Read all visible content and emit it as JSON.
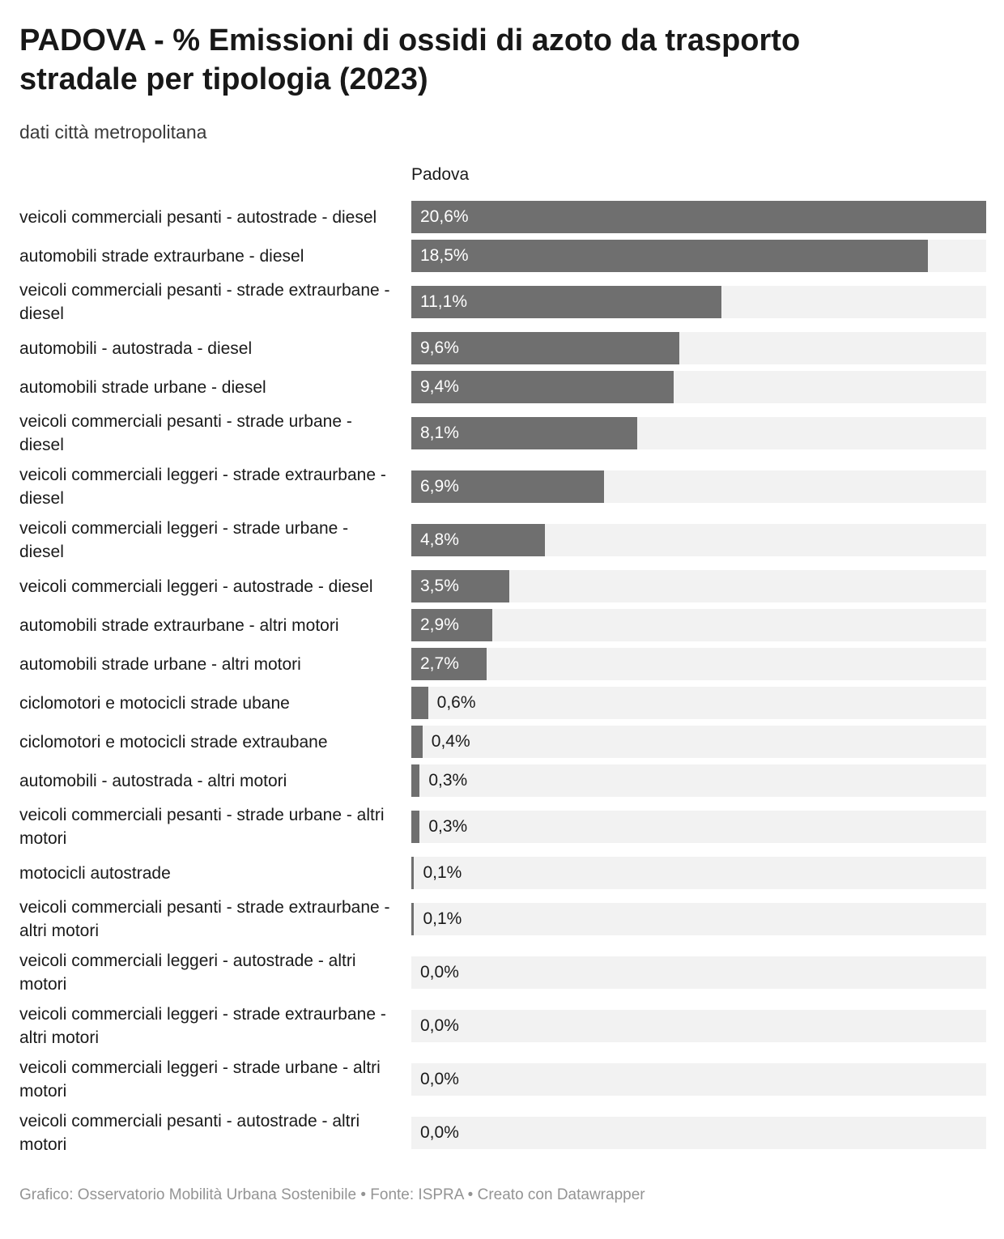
{
  "title": "PADOVA - % Emissioni di ossidi di azoto da trasporto stradale per tipologia (2023)",
  "subtitle": "dati città metropolitana",
  "column_header": "Padova",
  "footer": "Grafico: Osservatorio Mobilità Urbana Sostenibile • Fonte: ISPRA • Creato con Datawrapper",
  "colors": {
    "bar": "#6f6f6f",
    "track": "#f2f2f2",
    "value_inside": "#ffffff",
    "value_outside": "#1a1a1a",
    "title_text": "#181818",
    "footer_text": "#949494"
  },
  "chart_data": {
    "type": "bar",
    "orientation": "horizontal",
    "title": "PADOVA - % Emissioni di ossidi di azoto da trasporto stradale per tipologia (2023)",
    "subtitle": "dati città metropolitana",
    "series_header": "Padova",
    "xlabel": "",
    "ylabel": "",
    "xlim": [
      0,
      20.6
    ],
    "grid": false,
    "legend_position": "none",
    "inside_label_threshold": 2.0,
    "categories": [
      "veicoli commerciali pesanti - autostrade - diesel",
      "automobili strade extraurbane - diesel",
      "veicoli commerciali pesanti - strade extraurbane - diesel",
      "automobili - autostrada - diesel",
      "automobili strade urbane - diesel",
      "veicoli commerciali pesanti - strade urbane - diesel",
      "veicoli commerciali leggeri - strade extraurbane - diesel",
      "veicoli commerciali leggeri - strade urbane - diesel",
      "veicoli commerciali leggeri - autostrade - diesel",
      "automobili strade extraurbane - altri motori",
      "automobili strade urbane - altri motori",
      "ciclomotori e motocicli strade ubane",
      "ciclomotori e motocicli strade extraubane",
      "automobili - autostrada - altri motori",
      "veicoli commerciali pesanti - strade urbane - altri motori",
      "motocicli autostrade",
      "veicoli commerciali pesanti - strade extraurbane - altri motori",
      "veicoli commerciali leggeri - autostrade - altri motori",
      "veicoli commerciali leggeri - strade extraurbane - altri motori",
      "veicoli commerciali leggeri - strade urbane - altri motori",
      "veicoli commerciali pesanti - autostrade - altri motori"
    ],
    "values": [
      20.6,
      18.5,
      11.1,
      9.6,
      9.4,
      8.1,
      6.9,
      4.8,
      3.5,
      2.9,
      2.7,
      0.6,
      0.4,
      0.3,
      0.3,
      0.1,
      0.1,
      0.0,
      0.0,
      0.0,
      0.0
    ],
    "value_labels": [
      "20,6%",
      "18,5%",
      "11,1%",
      "9,6%",
      "9,4%",
      "8,1%",
      "6,9%",
      "4,8%",
      "3,5%",
      "2,9%",
      "2,7%",
      "0,6%",
      "0,4%",
      "0,3%",
      "0,3%",
      "0,1%",
      "0,1%",
      "0,0%",
      "0,0%",
      "0,0%",
      "0,0%"
    ]
  }
}
